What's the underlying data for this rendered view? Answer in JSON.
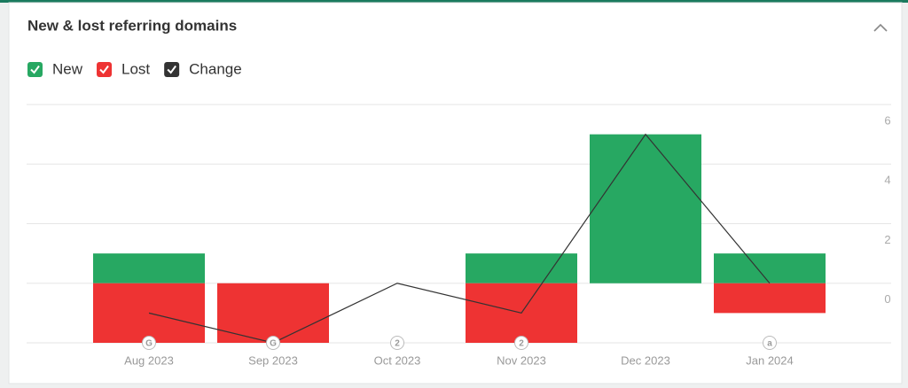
{
  "chart_data": {
    "type": "bar",
    "title": "New & lost referring domains",
    "categories": [
      "Aug 2023",
      "Sep 2023",
      "Oct 2023",
      "Nov 2023",
      "Dec 2023",
      "Jan 2024"
    ],
    "markers": [
      "G",
      "G",
      "2",
      "2",
      null,
      "a"
    ],
    "series": [
      {
        "name": "New",
        "color": "#27a862",
        "type": "bar",
        "values": [
          1,
          0,
          0,
          1,
          5,
          1
        ]
      },
      {
        "name": "Lost",
        "color": "#ee3333",
        "type": "bar",
        "values": [
          -2,
          -2,
          0,
          -2,
          0,
          -1
        ]
      },
      {
        "name": "Change",
        "color": "#333333",
        "type": "line",
        "values": [
          -1,
          -2,
          0,
          -1,
          5,
          0
        ]
      }
    ],
    "ylim": [
      -2,
      6
    ],
    "yticks": [
      0,
      2,
      4,
      6
    ],
    "grid": true
  }
}
